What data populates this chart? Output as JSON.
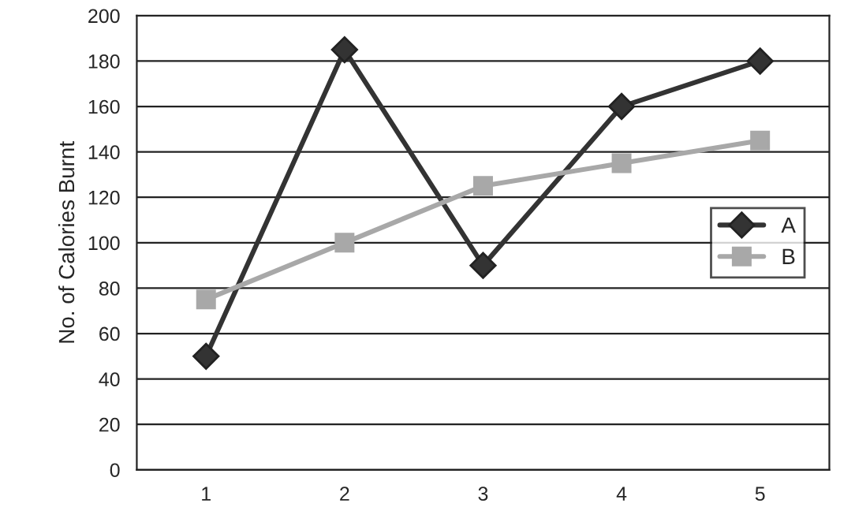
{
  "chart_data": {
    "type": "line",
    "ylabel": "No. of Calories Burnt",
    "categories": [
      "1",
      "2",
      "3",
      "4",
      "5"
    ],
    "series": [
      {
        "name": "A",
        "color": "#333333",
        "marker": "diamond",
        "values": [
          50,
          185,
          90,
          160,
          180
        ]
      },
      {
        "name": "B",
        "color": "#a8a8a8",
        "marker": "square",
        "values": [
          75,
          100,
          125,
          135,
          145
        ]
      }
    ],
    "ylim": [
      0,
      200
    ],
    "yticks": [
      0,
      20,
      40,
      60,
      80,
      100,
      120,
      140,
      160,
      180,
      200
    ],
    "grid": "y",
    "legend": "right",
    "line_style": "solid"
  }
}
